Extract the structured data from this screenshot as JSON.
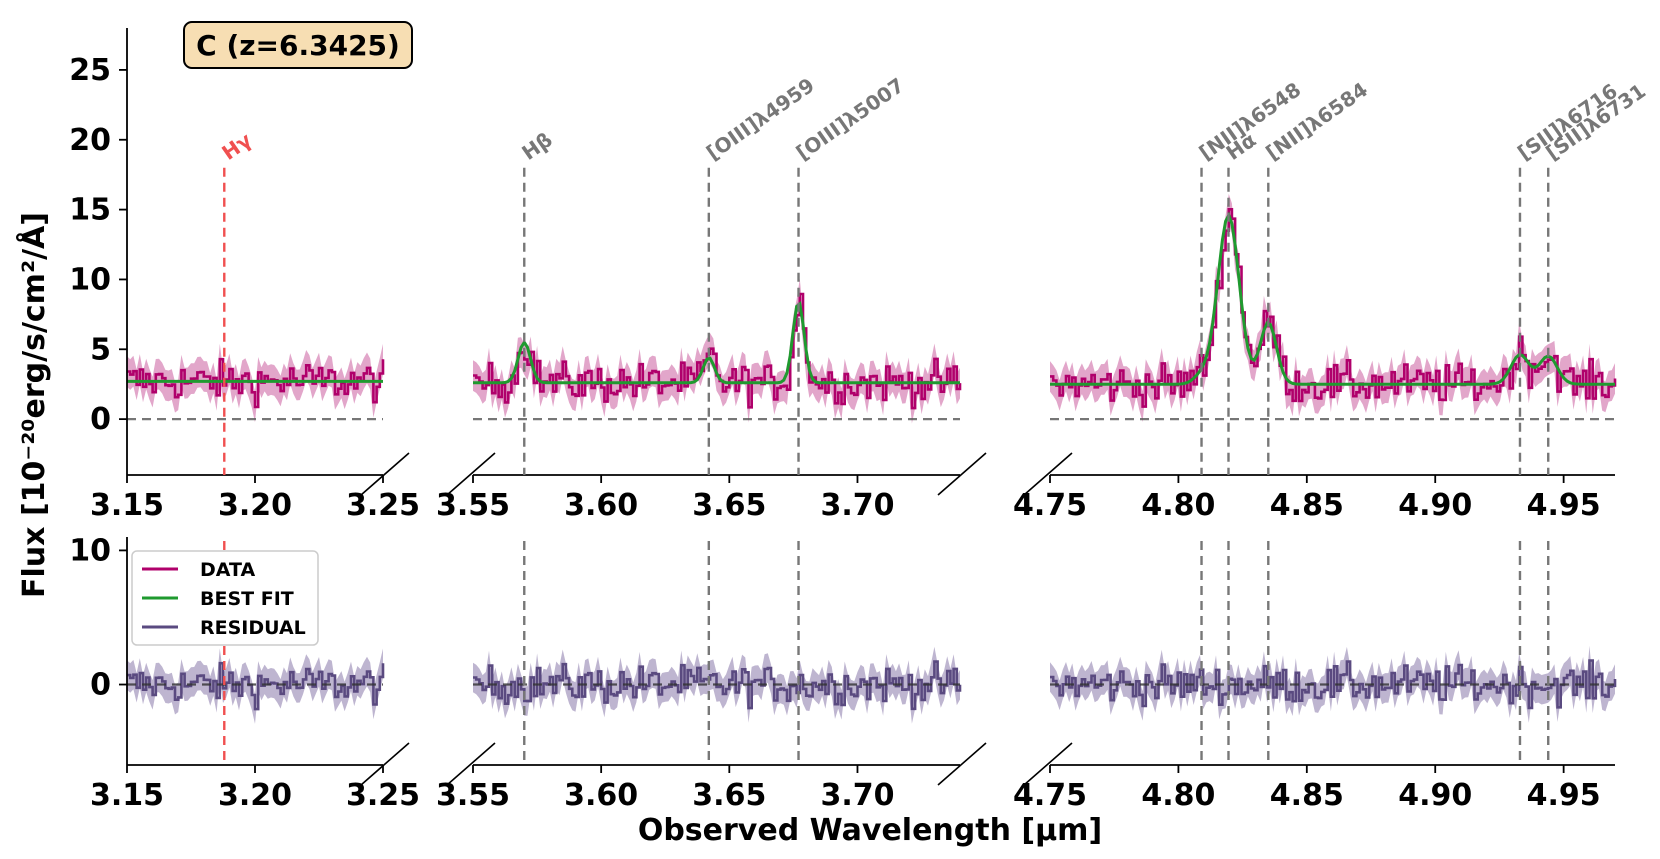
{
  "chart_data": {
    "type": "line",
    "redshift_badge": "C (z=6.3425)",
    "xlabel": "Observed Wavelength [$\\mu$m]",
    "xlabel_display": "Observed Wavelength [μm]",
    "ylabel_display": "Flux [10⁻²⁰erg/s/cm²/Å]",
    "legend": [
      "DATA",
      "BEST FIT",
      "RESIDUAL"
    ],
    "colors": {
      "data": "#b0006b",
      "data_err": "#d888b8",
      "best_fit": "#1f9a2f",
      "residual": "#5a4a80",
      "residual_err": "#a89cc0",
      "line_marker": "#777777",
      "hgamma": "#f05050",
      "badge_fill": "#f7deb3"
    },
    "top_panel": {
      "ylim": [
        -4,
        28
      ],
      "yticks": [
        0,
        5,
        10,
        15,
        20,
        25
      ],
      "ytick_labels": [
        "0",
        "5",
        "10",
        "15",
        "20",
        "25"
      ]
    },
    "bottom_panel": {
      "ylim": [
        -6,
        11
      ],
      "yticks": [
        0,
        10
      ],
      "ytick_labels": [
        "0",
        "10"
      ]
    },
    "segments": [
      {
        "xlim": [
          3.15,
          3.25
        ],
        "xticks": [
          3.15,
          3.2,
          3.25
        ],
        "xtick_labels": [
          "3.15",
          "3.20",
          "3.25"
        ],
        "continuum": 2.7
      },
      {
        "xlim": [
          3.55,
          3.74
        ],
        "xticks": [
          3.55,
          3.6,
          3.65,
          3.7
        ],
        "xtick_labels": [
          "3.55",
          "3.60",
          "3.65",
          "3.70"
        ],
        "continuum": 2.6
      },
      {
        "xlim": [
          4.75,
          4.97
        ],
        "xticks": [
          4.75,
          4.8,
          4.85,
          4.9,
          4.95
        ],
        "xtick_labels": [
          "4.75",
          "4.80",
          "4.85",
          "4.90",
          "4.95"
        ],
        "continuum": 2.5
      }
    ],
    "emission_lines": [
      {
        "label": "Hγ",
        "wavelength": 3.188,
        "segment": 0,
        "color": "#f05050",
        "dashed_in_bottom": true,
        "fit_peak": 0,
        "fit_sigma": 0.002
      },
      {
        "label": "Hβ",
        "wavelength": 3.57,
        "segment": 1,
        "color": "#777777",
        "fit_peak": 2.9,
        "fit_sigma": 0.0024
      },
      {
        "label": "[OIII]λ4959",
        "wavelength": 3.642,
        "segment": 1,
        "color": "#777777",
        "fit_peak": 1.8,
        "fit_sigma": 0.0022
      },
      {
        "label": "[OIII]λ5007",
        "wavelength": 3.677,
        "segment": 1,
        "color": "#777777",
        "fit_peak": 5.8,
        "fit_sigma": 0.0022
      },
      {
        "label": "[NII]λ6548",
        "wavelength": 4.809,
        "segment": 2,
        "color": "#777777",
        "fit_peak": 0.6,
        "fit_sigma": 0.003
      },
      {
        "label": "Hα",
        "wavelength": 4.8195,
        "segment": 2,
        "color": "#777777",
        "fit_peak": 12.1,
        "fit_sigma": 0.0042
      },
      {
        "label": "[NII]λ6584",
        "wavelength": 4.835,
        "segment": 2,
        "color": "#777777",
        "fit_peak": 4.4,
        "fit_sigma": 0.0032
      },
      {
        "label": "[SII]λ6716",
        "wavelength": 4.933,
        "segment": 2,
        "color": "#777777",
        "fit_peak": 2.1,
        "fit_sigma": 0.0035
      },
      {
        "label": "[SII]λ6731",
        "wavelength": 4.944,
        "segment": 2,
        "color": "#777777",
        "fit_peak": 2.0,
        "fit_sigma": 0.0035
      }
    ]
  }
}
